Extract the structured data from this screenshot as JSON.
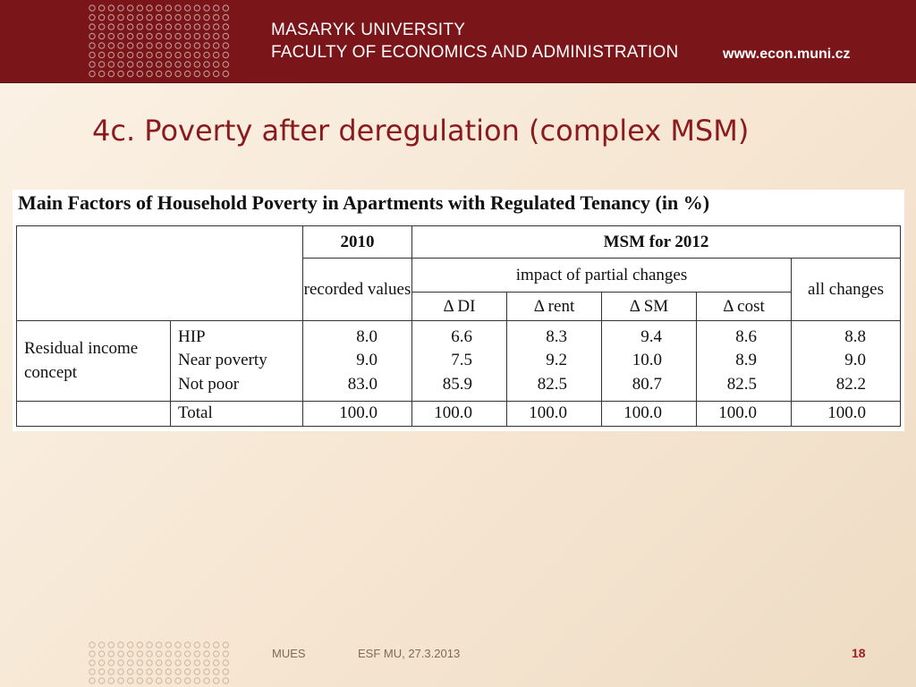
{
  "header": {
    "university": "MASARYK UNIVERSITY",
    "faculty": "FACULTY OF ECONOMICS AND ADMINISTRATION",
    "website": "www.econ.muni.cz",
    "color": "#7a1519"
  },
  "slide": {
    "title": "4c. Poverty after deregulation (complex MSM)",
    "title_color": "#8b1a1e"
  },
  "table": {
    "caption": "Main Factors of Household Poverty in Apartments with Regulated Tenancy (in %)",
    "header_2010": "2010",
    "header_msm": "MSM for 2012",
    "recorded_values": "recorded values",
    "impact_partial": "impact of partial changes",
    "all_changes": "all changes",
    "delta_cols": [
      "Δ DI",
      "Δ rent",
      "Δ SM",
      "Δ cost"
    ],
    "group_label": "Residual income concept",
    "rows": [
      {
        "label": "HIP",
        "values": [
          "8.0",
          "6.6",
          "8.3",
          "9.4",
          "8.6",
          "8.8"
        ]
      },
      {
        "label": "Near poverty",
        "values": [
          "9.0",
          "7.5",
          "9.2",
          "10.0",
          "8.9",
          "9.0"
        ]
      },
      {
        "label": "Not poor",
        "values": [
          "83.0",
          "85.9",
          "82.5",
          "80.7",
          "82.5",
          "82.2"
        ]
      }
    ],
    "total": {
      "label": "Total",
      "values": [
        "100.0",
        "100.0",
        "100.0",
        "100.0",
        "100.0",
        "100.0"
      ]
    }
  },
  "footer": {
    "left": "MUES",
    "middle": "ESF MU, 27.3.2013",
    "page_number": "18",
    "page_color": "#a0201f"
  }
}
